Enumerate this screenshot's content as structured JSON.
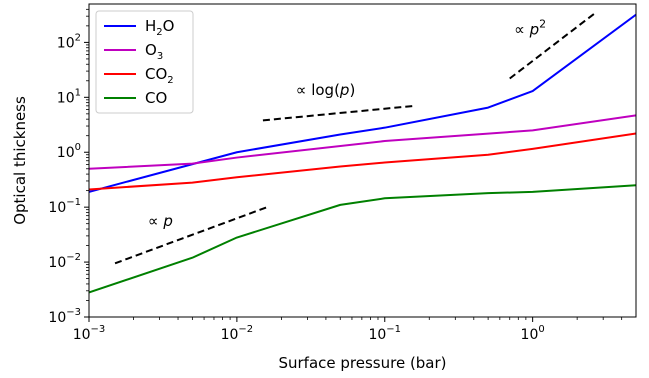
{
  "chart_data": {
    "type": "line",
    "xlabel": "Surface pressure (bar)",
    "ylabel": "Optical thickness",
    "xscale": "log",
    "yscale": "log",
    "xlim": [
      0.001,
      5
    ],
    "ylim": [
      0.001,
      500
    ],
    "grid": false,
    "legend_position": "top-left",
    "x_ticks": [
      {
        "value": 0.001,
        "base": "10",
        "exp": "−3"
      },
      {
        "value": 0.01,
        "base": "10",
        "exp": "−2"
      },
      {
        "value": 0.1,
        "base": "10",
        "exp": "−1"
      },
      {
        "value": 1,
        "base": "10",
        "exp": "0"
      }
    ],
    "y_ticks": [
      {
        "value": 0.001,
        "base": "10",
        "exp": "−3"
      },
      {
        "value": 0.01,
        "base": "10",
        "exp": "−2"
      },
      {
        "value": 0.1,
        "base": "10",
        "exp": "−1"
      },
      {
        "value": 1,
        "base": "10",
        "exp": "0"
      },
      {
        "value": 10,
        "base": "10",
        "exp": "1"
      },
      {
        "value": 100,
        "base": "10",
        "exp": "2"
      }
    ],
    "series": [
      {
        "name": "H2O",
        "label_parts": [
          "H",
          "2",
          "O"
        ],
        "color": "#0000ff",
        "x": [
          0.001,
          0.01,
          0.05,
          0.1,
          0.5,
          1,
          5
        ],
        "y": [
          0.19,
          1.0,
          2.1,
          2.8,
          6.5,
          13,
          320
        ]
      },
      {
        "name": "O3",
        "label_parts": [
          "O",
          "3",
          ""
        ],
        "color": "#bf00bf",
        "x": [
          0.001,
          0.005,
          0.01,
          0.1,
          1,
          5
        ],
        "y": [
          0.5,
          0.62,
          0.8,
          1.6,
          2.5,
          4.7
        ]
      },
      {
        "name": "CO2",
        "label_parts": [
          "CO",
          "2",
          ""
        ],
        "color": "#ff0000",
        "x": [
          0.001,
          0.005,
          0.01,
          0.05,
          0.1,
          0.5,
          1,
          5
        ],
        "y": [
          0.21,
          0.28,
          0.35,
          0.55,
          0.65,
          0.9,
          1.15,
          2.2
        ]
      },
      {
        "name": "CO",
        "label_parts": [
          "CO",
          "",
          ""
        ],
        "color": "#008000",
        "x": [
          0.001,
          0.005,
          0.01,
          0.05,
          0.1,
          0.5,
          1,
          5
        ],
        "y": [
          0.0028,
          0.012,
          0.028,
          0.11,
          0.145,
          0.18,
          0.19,
          0.25
        ]
      }
    ],
    "annotations": [
      {
        "text": "∝ p",
        "prefix": "∝ ",
        "var": "p",
        "sup": "",
        "suffix": "",
        "x": 0.0025,
        "y": 0.045
      },
      {
        "text": "∝ log(p)",
        "prefix": "∝ log(",
        "var": "p",
        "sup": "",
        "suffix": ")",
        "x": 0.025,
        "y": 11
      },
      {
        "text": "∝ p2",
        "prefix": "∝ ",
        "var": "p",
        "sup": "2",
        "suffix": "",
        "x": 0.75,
        "y": 140
      }
    ],
    "reference_lines": [
      {
        "label": "∝ p",
        "x": [
          0.0015,
          0.016
        ],
        "y": [
          0.0095,
          0.1
        ]
      },
      {
        "label": "∝ log(p)",
        "x": [
          0.015,
          0.16
        ],
        "y": [
          3.8,
          7.0
        ]
      },
      {
        "label": "∝ p2",
        "x": [
          0.7,
          2.6
        ],
        "y": [
          22,
          330
        ]
      }
    ]
  }
}
